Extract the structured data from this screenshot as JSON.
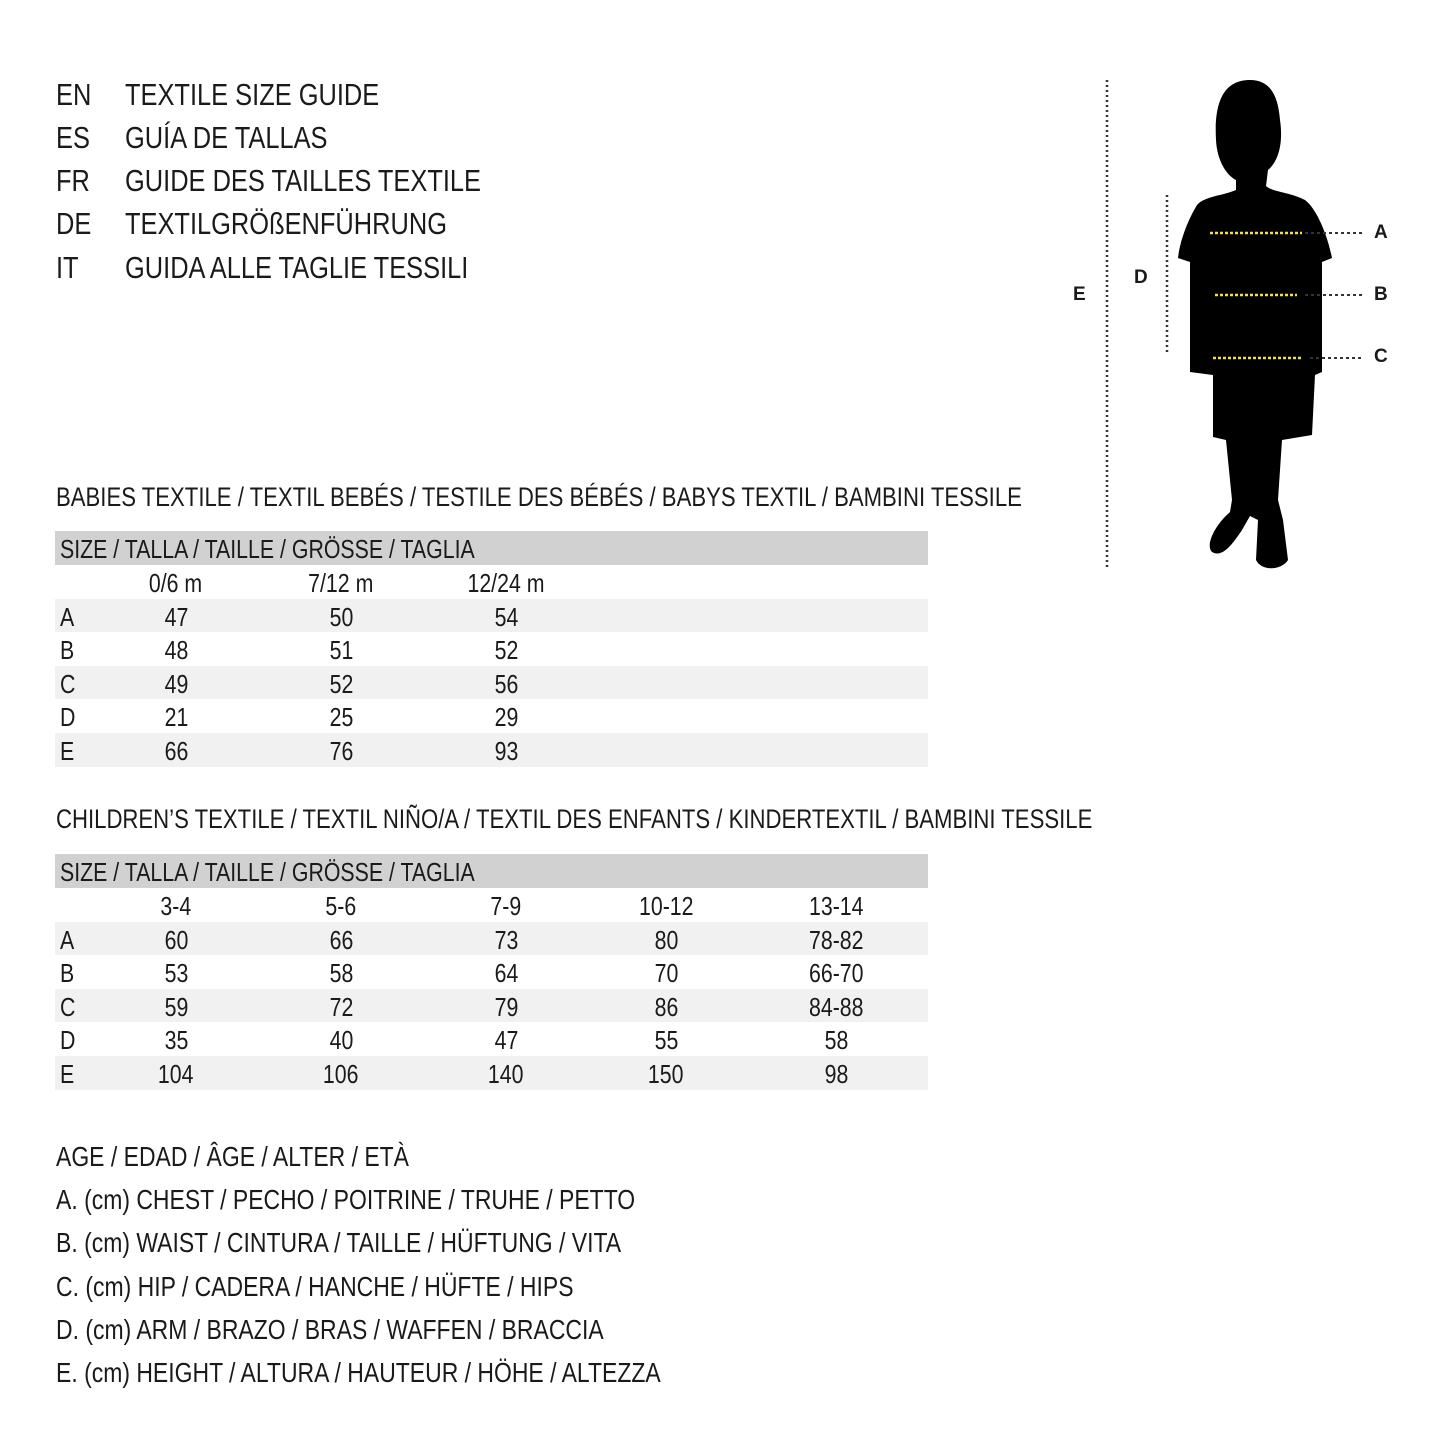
{
  "titles": [
    {
      "code": "EN",
      "text": "TEXTILE SIZE GUIDE"
    },
    {
      "code": "ES",
      "text": "GUÍA DE TALLAS"
    },
    {
      "code": "FR",
      "text": "GUIDE DES TAILLES TEXTILE"
    },
    {
      "code": "DE",
      "text": "TEXTILGRÖßENFÜHRUNG"
    },
    {
      "code": "IT",
      "text": "GUIDA ALLE TAGLIE TESSILI"
    }
  ],
  "figure": {
    "labels": {
      "A": "A",
      "B": "B",
      "C": "C",
      "D": "D",
      "E": "E"
    },
    "colors": {
      "silhouette": "#000000",
      "measure_line": "#f2e23a",
      "guide_line": "#333333"
    }
  },
  "babies": {
    "title": "BABIES TEXTILE / TEXTIL BEBÉS / TESTILE DES BÉBÉS / BABYS TEXTIL / BAMBINI TESSILE",
    "header": "SIZE / TALLA / TAILLE / GRÖSSE / TAGLIA",
    "columns": [
      "0/6 m",
      "7/12 m",
      "12/24 m"
    ],
    "rows": [
      {
        "label": "A",
        "values": [
          "47",
          "50",
          "54"
        ]
      },
      {
        "label": "B",
        "values": [
          "48",
          "51",
          "52"
        ]
      },
      {
        "label": "C",
        "values": [
          "49",
          "52",
          "56"
        ]
      },
      {
        "label": "D",
        "values": [
          "21",
          "25",
          "29"
        ]
      },
      {
        "label": "E",
        "values": [
          "66",
          "76",
          "93"
        ]
      }
    ]
  },
  "children": {
    "title": "CHILDREN’S TEXTILE / TEXTIL NIÑO/A / TEXTIL DES ENFANTS / KINDERTEXTIL / BAMBINI TESSILE",
    "header": "SIZE / TALLA / TAILLE / GRÖSSE / TAGLIA",
    "columns": [
      "3-4",
      "5-6",
      "7-9",
      "10-12",
      "13-14"
    ],
    "rows": [
      {
        "label": "A",
        "values": [
          "60",
          "66",
          "73",
          "80",
          "78-82"
        ]
      },
      {
        "label": "B",
        "values": [
          "53",
          "58",
          "64",
          "70",
          "66-70"
        ]
      },
      {
        "label": "C",
        "values": [
          "59",
          "72",
          "79",
          "86",
          "84-88"
        ]
      },
      {
        "label": "D",
        "values": [
          "35",
          "40",
          "47",
          "55",
          "58"
        ]
      },
      {
        "label": "E",
        "values": [
          "104",
          "106",
          "140",
          "150",
          "98"
        ]
      }
    ]
  },
  "legend": [
    "AGE / EDAD / ÂGE / ALTER / ETÀ",
    "A. (cm) CHEST / PECHO / POITRINE / TRUHE / PETTO",
    "B. (cm) WAIST / CINTURA / TAILLE / HÜFTUNG / VITA",
    "C. (cm) HIP / CADERA / HANCHE / HÜFTE / HIPS",
    "D. (cm) ARM / BRAZO / BRAS / WAFFEN / BRACCIA",
    "E. (cm) HEIGHT / ALTURA / HAUTEUR / HÖHE / ALTEZZA"
  ]
}
